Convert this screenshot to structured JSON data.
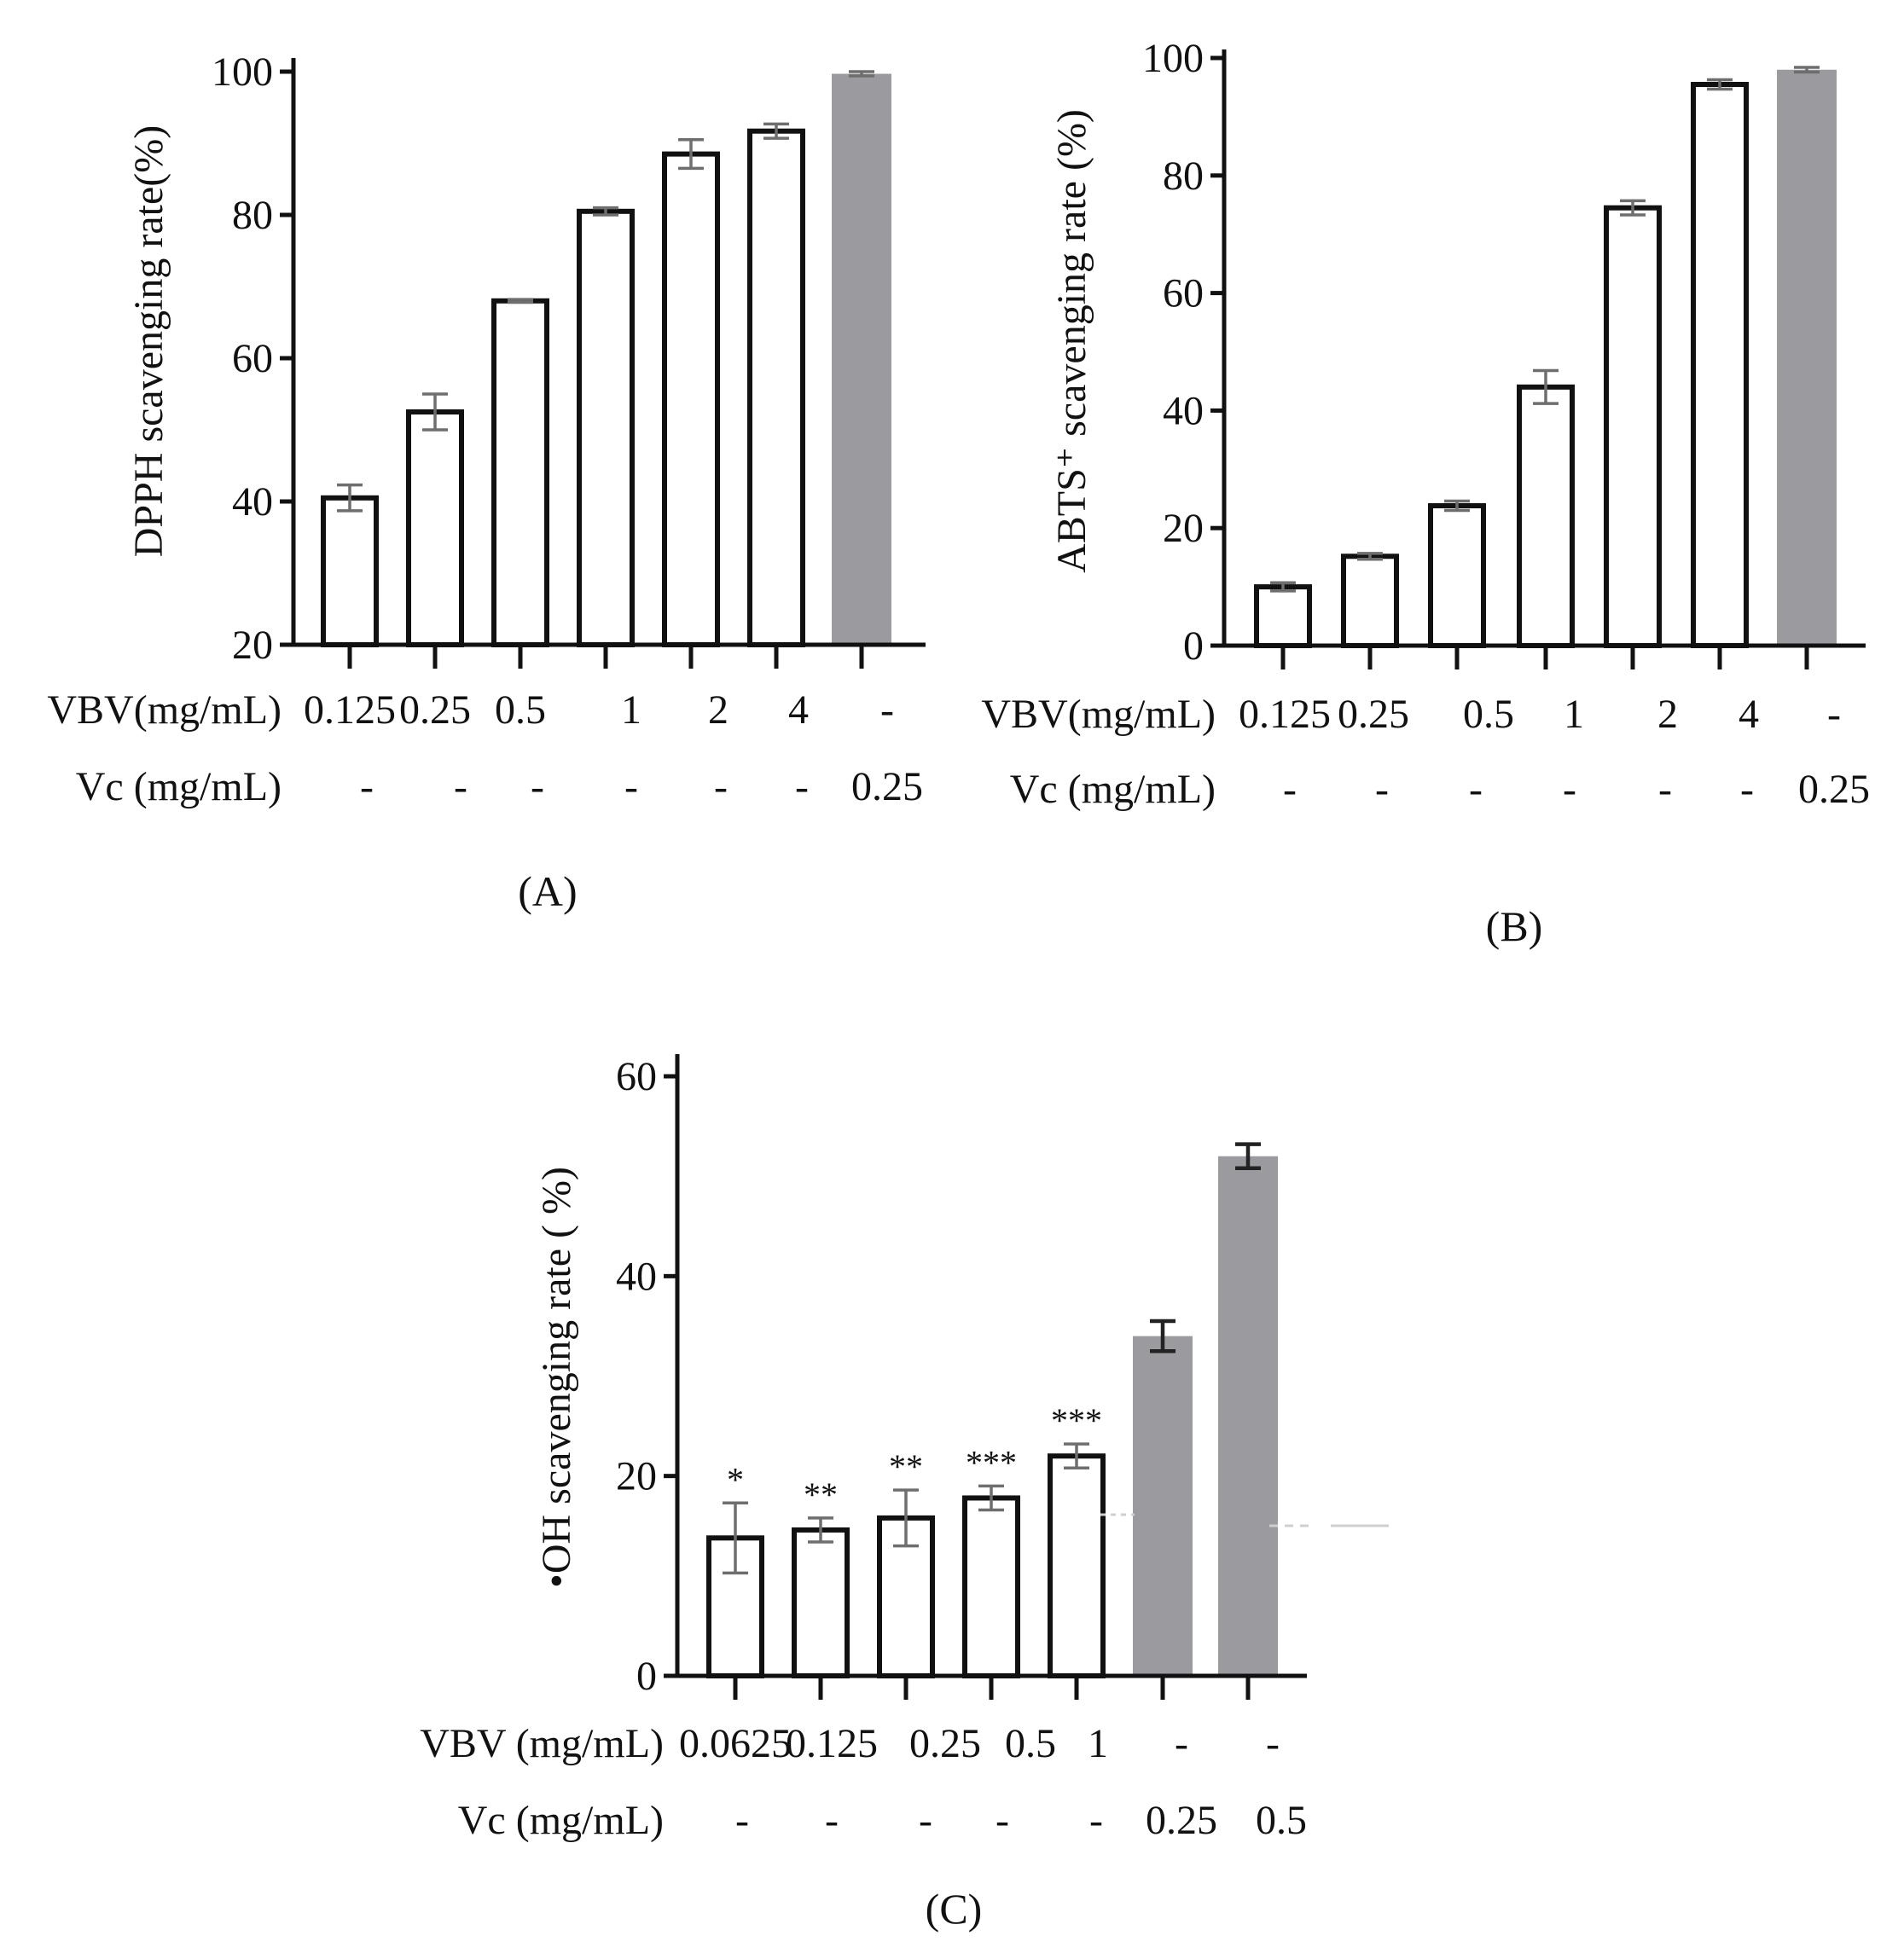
{
  "chart_data": [
    {
      "type": "bar",
      "panel_label": "(A)",
      "ylabel": "DPPH scavenging rate(%)",
      "ylim": [
        20,
        100
      ],
      "yticks": [
        20,
        40,
        60,
        80,
        100
      ],
      "ytick_labels": [
        "20",
        "40",
        "60",
        "80",
        "100"
      ],
      "row_labels": [
        "VBV(mg/mL)",
        "Vc (mg/mL)"
      ],
      "categories_vbv": [
        "0.125",
        "0.25",
        "0.5",
        "1",
        "2",
        "4",
        "-"
      ],
      "categories_vc": [
        "-",
        "-",
        "-",
        "-",
        "-",
        "-",
        "0.25"
      ],
      "values": [
        40.5,
        52.5,
        68,
        80.5,
        88.5,
        91.7,
        99.7
      ],
      "errors": [
        1.8,
        2.5,
        0.2,
        0.5,
        2,
        1,
        0.3
      ],
      "fills": [
        "white",
        "white",
        "white",
        "white",
        "white",
        "white",
        "gray"
      ],
      "significance": [
        "",
        "",
        "",
        "",
        "",
        "",
        ""
      ]
    },
    {
      "type": "bar",
      "panel_label": "(B)",
      "ylabel": "ABTS⁺ scavenging rate (%)",
      "ylim": [
        0,
        100
      ],
      "yticks": [
        0,
        20,
        40,
        60,
        80,
        100
      ],
      "ytick_labels": [
        "0",
        "20",
        "40",
        "60",
        "80",
        "100"
      ],
      "row_labels": [
        "VBV(mg/mL)",
        "Vc  (mg/mL)"
      ],
      "categories_vbv": [
        "0.125",
        "0.25",
        "0.5",
        "1",
        "2",
        "4",
        "-"
      ],
      "categories_vc": [
        "-",
        "-",
        "-",
        "-",
        "-",
        "-",
        "0.25"
      ],
      "values": [
        10,
        15.2,
        23.8,
        44,
        74.5,
        95.5,
        98
      ],
      "errors": [
        0.7,
        0.5,
        0.8,
        2.8,
        1.2,
        0.8,
        0.4
      ],
      "fills": [
        "white",
        "white",
        "white",
        "white",
        "white",
        "white",
        "gray"
      ],
      "significance": [
        "",
        "",
        "",
        "",
        "",
        "",
        ""
      ]
    },
    {
      "type": "bar",
      "panel_label": "(C)",
      "ylabel": "•OH scavenging rate (  %)",
      "ylim": [
        0,
        60
      ],
      "yticks": [
        0,
        20,
        40,
        60
      ],
      "ytick_labels": [
        "0",
        "20",
        "40",
        "60"
      ],
      "row_labels": [
        "VBV (mg/mL)",
        "Vc (mg/mL)"
      ],
      "categories_vbv": [
        "0.0625",
        "0.125",
        "0.25",
        "0.5",
        "1",
        "-",
        "-"
      ],
      "categories_vc": [
        "-",
        "-",
        "-",
        "-",
        "-",
        "0.25",
        "0.5"
      ],
      "values": [
        13.8,
        14.6,
        15.8,
        17.8,
        22,
        34,
        52
      ],
      "errors": [
        3.5,
        1.2,
        2.8,
        1.2,
        1.2,
        1.5,
        1.2
      ],
      "fills": [
        "white",
        "white",
        "white",
        "white",
        "white",
        "gray",
        "gray"
      ],
      "significance": [
        "*",
        "**",
        "**",
        "***",
        "***",
        "",
        ""
      ]
    }
  ]
}
